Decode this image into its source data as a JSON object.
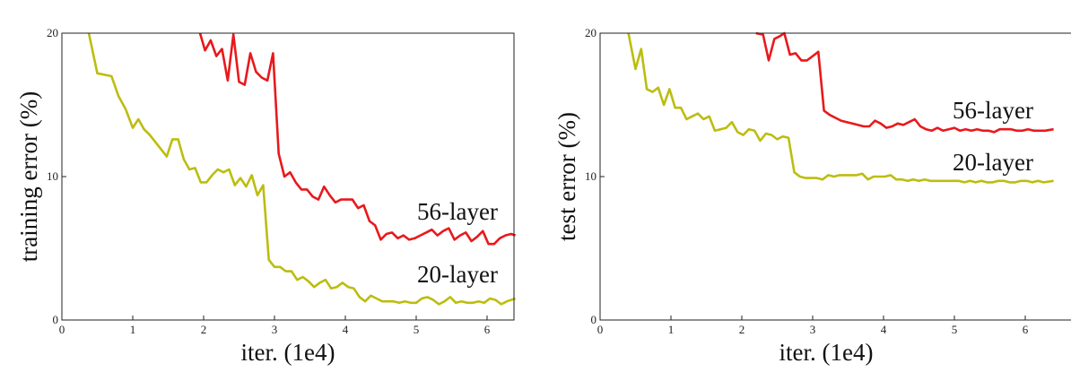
{
  "chart_data": [
    {
      "type": "line",
      "title": "",
      "xlabel": "iter. (1e4)",
      "ylabel": "training error (%)",
      "xlim": [
        0,
        6.4
      ],
      "ylim": [
        0,
        20
      ],
      "xticks": [
        "0",
        "1",
        "2",
        "3",
        "4",
        "5",
        "6"
      ],
      "yticks": [
        "0",
        "10",
        "20"
      ],
      "grid": false,
      "series": [
        {
          "name": "56-layer",
          "color": "#e8191c",
          "x": [
            1.95,
            2.02,
            2.1,
            2.18,
            2.26,
            2.34,
            2.42,
            2.5,
            2.58,
            2.66,
            2.74,
            2.82,
            2.9,
            2.98,
            3.06,
            3.14,
            3.22,
            3.3,
            3.38,
            3.46,
            3.54,
            3.62,
            3.7,
            3.78,
            3.86,
            3.94,
            4.02,
            4.1,
            4.18,
            4.26,
            4.34,
            4.42,
            4.5,
            4.58,
            4.66,
            4.74,
            4.82,
            4.9,
            4.98,
            5.06,
            5.14,
            5.22,
            5.3,
            5.38,
            5.46,
            5.54,
            5.62,
            5.7,
            5.78,
            5.86,
            5.94,
            6.02,
            6.1,
            6.18,
            6.26,
            6.34,
            6.4
          ],
          "y": [
            20,
            18.8,
            19.5,
            18.4,
            18.9,
            16.7,
            19.9,
            16.6,
            16.4,
            18.6,
            17.3,
            16.9,
            16.7,
            18.6,
            11.6,
            10.0,
            10.3,
            9.6,
            9.1,
            9.1,
            8.6,
            8.4,
            9.3,
            8.7,
            8.2,
            8.4,
            8.4,
            8.4,
            7.8,
            8.0,
            6.9,
            6.6,
            5.6,
            6.0,
            6.1,
            5.7,
            5.9,
            5.6,
            5.7,
            5.9,
            6.1,
            6.3,
            5.9,
            6.2,
            6.4,
            5.6,
            5.9,
            6.1,
            5.5,
            5.8,
            6.2,
            5.3,
            5.3,
            5.7,
            5.9,
            6.0,
            5.9
          ]
        },
        {
          "name": "20-layer",
          "color": "#bcbd0f",
          "x": [
            0.38,
            0.5,
            0.6,
            0.7,
            0.8,
            0.9,
            1.0,
            1.08,
            1.16,
            1.24,
            1.32,
            1.4,
            1.48,
            1.56,
            1.64,
            1.72,
            1.8,
            1.88,
            1.96,
            2.04,
            2.12,
            2.2,
            2.28,
            2.36,
            2.44,
            2.52,
            2.6,
            2.68,
            2.76,
            2.84,
            2.92,
            3.0,
            3.08,
            3.16,
            3.24,
            3.32,
            3.4,
            3.48,
            3.56,
            3.64,
            3.72,
            3.8,
            3.88,
            3.96,
            4.04,
            4.12,
            4.2,
            4.28,
            4.36,
            4.44,
            4.52,
            4.6,
            4.68,
            4.76,
            4.84,
            4.92,
            5.0,
            5.08,
            5.16,
            5.24,
            5.32,
            5.4,
            5.48,
            5.56,
            5.64,
            5.72,
            5.8,
            5.88,
            5.96,
            6.04,
            6.12,
            6.2,
            6.28,
            6.4
          ],
          "y": [
            20,
            17.2,
            17.1,
            17.0,
            15.6,
            14.7,
            13.4,
            14.0,
            13.3,
            12.9,
            12.4,
            11.9,
            11.4,
            12.6,
            12.6,
            11.2,
            10.5,
            10.6,
            9.6,
            9.6,
            10.1,
            10.5,
            10.3,
            10.5,
            9.4,
            9.9,
            9.3,
            10.1,
            8.7,
            9.4,
            4.2,
            3.7,
            3.7,
            3.4,
            3.4,
            2.8,
            3.0,
            2.7,
            2.3,
            2.6,
            2.8,
            2.2,
            2.3,
            2.6,
            2.3,
            2.2,
            1.6,
            1.3,
            1.7,
            1.5,
            1.3,
            1.3,
            1.3,
            1.2,
            1.3,
            1.2,
            1.2,
            1.5,
            1.6,
            1.4,
            1.1,
            1.3,
            1.6,
            1.2,
            1.3,
            1.2,
            1.2,
            1.3,
            1.2,
            1.5,
            1.4,
            1.1,
            1.3,
            1.5
          ]
        }
      ]
    },
    {
      "type": "line",
      "title": "",
      "xlabel": "iter. (1e4)",
      "ylabel": "test error (%)",
      "xlim": [
        0,
        6.4
      ],
      "ylim": [
        0,
        20
      ],
      "xticks": [
        "0",
        "1",
        "2",
        "3",
        "4",
        "5",
        "6"
      ],
      "yticks": [
        "0",
        "10",
        "20"
      ],
      "grid": false,
      "series": [
        {
          "name": "56-layer",
          "color": "#e8191c",
          "x": [
            2.2,
            2.3,
            2.38,
            2.46,
            2.54,
            2.6,
            2.68,
            2.76,
            2.84,
            2.92,
            3.0,
            3.08,
            3.16,
            3.24,
            3.32,
            3.4,
            3.48,
            3.56,
            3.64,
            3.72,
            3.8,
            3.88,
            3.96,
            4.04,
            4.12,
            4.2,
            4.28,
            4.36,
            4.44,
            4.52,
            4.6,
            4.68,
            4.76,
            4.84,
            4.92,
            5.0,
            5.08,
            5.16,
            5.24,
            5.32,
            5.4,
            5.48,
            5.56,
            5.64,
            5.72,
            5.8,
            5.88,
            5.96,
            6.04,
            6.12,
            6.2,
            6.28,
            6.4
          ],
          "y": [
            20,
            19.9,
            18.1,
            19.6,
            19.8,
            20,
            18.5,
            18.6,
            18.1,
            18.1,
            18.4,
            18.7,
            14.6,
            14.3,
            14.1,
            13.9,
            13.8,
            13.7,
            13.6,
            13.5,
            13.5,
            13.9,
            13.7,
            13.4,
            13.5,
            13.7,
            13.6,
            13.8,
            14.0,
            13.5,
            13.3,
            13.2,
            13.4,
            13.2,
            13.3,
            13.4,
            13.2,
            13.3,
            13.2,
            13.3,
            13.2,
            13.2,
            13.1,
            13.3,
            13.3,
            13.3,
            13.2,
            13.2,
            13.3,
            13.2,
            13.2,
            13.2,
            13.3
          ]
        },
        {
          "name": "20-layer",
          "color": "#bcbd0f",
          "x": [
            0.4,
            0.5,
            0.58,
            0.66,
            0.74,
            0.82,
            0.9,
            0.98,
            1.06,
            1.14,
            1.22,
            1.3,
            1.38,
            1.46,
            1.54,
            1.62,
            1.7,
            1.78,
            1.86,
            1.94,
            2.02,
            2.1,
            2.18,
            2.26,
            2.34,
            2.42,
            2.5,
            2.58,
            2.66,
            2.74,
            2.82,
            2.9,
            2.98,
            3.06,
            3.14,
            3.22,
            3.3,
            3.38,
            3.46,
            3.54,
            3.62,
            3.7,
            3.78,
            3.86,
            3.94,
            4.02,
            4.1,
            4.18,
            4.26,
            4.34,
            4.42,
            4.5,
            4.58,
            4.66,
            4.74,
            4.82,
            4.9,
            4.98,
            5.06,
            5.14,
            5.22,
            5.3,
            5.38,
            5.46,
            5.54,
            5.62,
            5.7,
            5.78,
            5.86,
            5.94,
            6.02,
            6.1,
            6.18,
            6.26,
            6.4
          ],
          "y": [
            20,
            17.5,
            18.9,
            16.1,
            15.9,
            16.2,
            15.0,
            16.1,
            14.8,
            14.8,
            14.0,
            14.2,
            14.4,
            14.0,
            14.2,
            13.2,
            13.3,
            13.4,
            13.8,
            13.1,
            12.9,
            13.3,
            13.2,
            12.5,
            13.0,
            12.9,
            12.6,
            12.8,
            12.7,
            10.3,
            10.0,
            9.9,
            9.9,
            9.9,
            9.8,
            10.1,
            10.0,
            10.1,
            10.1,
            10.1,
            10.1,
            10.2,
            9.8,
            10.0,
            10.0,
            10.0,
            10.1,
            9.8,
            9.8,
            9.7,
            9.8,
            9.7,
            9.8,
            9.7,
            9.7,
            9.7,
            9.7,
            9.7,
            9.7,
            9.6,
            9.7,
            9.6,
            9.7,
            9.6,
            9.6,
            9.7,
            9.7,
            9.6,
            9.6,
            9.7,
            9.7,
            9.6,
            9.7,
            9.6,
            9.7
          ]
        }
      ]
    }
  ]
}
